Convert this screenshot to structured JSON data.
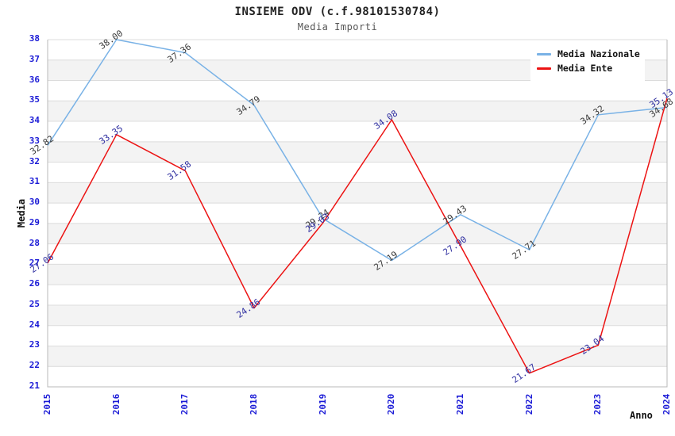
{
  "title": "INSIEME ODV (c.f.98101530784)",
  "subtitle": "Media Importi",
  "chart_data": {
    "type": "line",
    "x": [
      2015,
      2016,
      2017,
      2018,
      2019,
      2020,
      2021,
      2022,
      2023,
      2024
    ],
    "xlabel": "Anno",
    "ylabel": "Media",
    "ylim": [
      21,
      38
    ],
    "y_tick_step": 1,
    "grid": "horizontal-stripes",
    "legend_position": "top-right",
    "series": [
      {
        "name": "Media Nazionale",
        "color": "#79b2e6",
        "label_color": "#3a3a3a",
        "values": [
          32.82,
          38.0,
          37.36,
          34.79,
          29.24,
          27.19,
          29.43,
          27.71,
          34.32,
          34.68
        ]
      },
      {
        "name": "Media Ente",
        "color": "#ec1313",
        "label_color": "#2e2ea0",
        "values": [
          27.06,
          33.35,
          31.58,
          24.86,
          29.03,
          34.08,
          27.9,
          21.67,
          23.04,
          35.13
        ]
      }
    ]
  },
  "colors": {
    "tick_label": "#1a1ad6",
    "stripe": "#f3f3f3",
    "grid_line": "#dcdcdc",
    "axis_line": "#b8b8b8",
    "background": "#ffffff"
  }
}
